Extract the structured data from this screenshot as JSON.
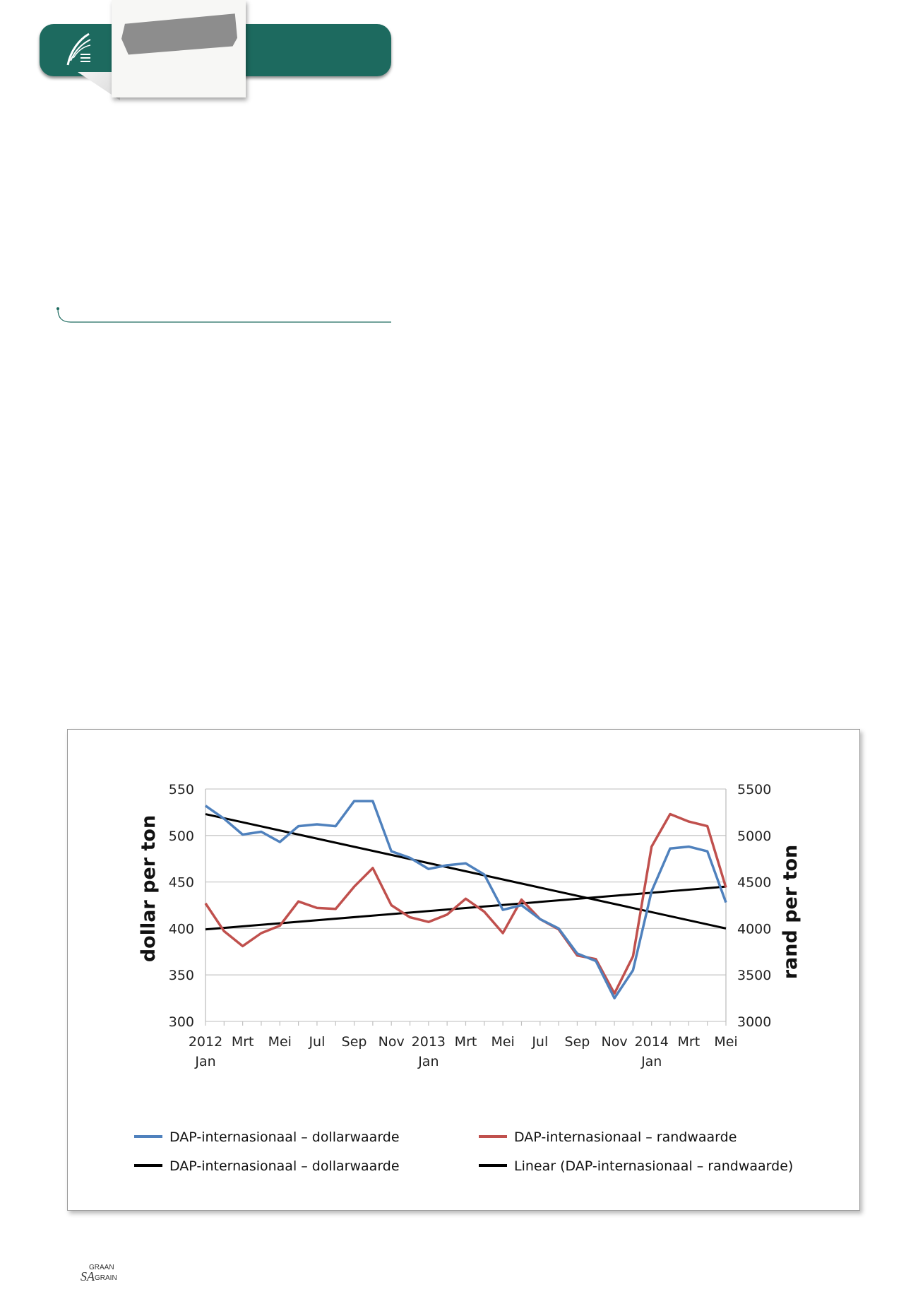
{
  "colors": {
    "header": "#1d6a5f",
    "blue": "#4f81bd",
    "red": "#c0504d",
    "black": "#000000",
    "grid": "#c9c9c9"
  },
  "chart_data": {
    "type": "line",
    "x_labels": [
      {
        "top": "2012",
        "bottom": "Jan"
      },
      {
        "top": "Mrt",
        "bottom": ""
      },
      {
        "top": "Mei",
        "bottom": ""
      },
      {
        "top": "Jul",
        "bottom": ""
      },
      {
        "top": "Sep",
        "bottom": ""
      },
      {
        "top": "Nov",
        "bottom": ""
      },
      {
        "top": "2013",
        "bottom": "Jan"
      },
      {
        "top": "Mrt",
        "bottom": ""
      },
      {
        "top": "Mei",
        "bottom": ""
      },
      {
        "top": "Jul",
        "bottom": ""
      },
      {
        "top": "Sep",
        "bottom": ""
      },
      {
        "top": "Nov",
        "bottom": ""
      },
      {
        "top": "2014",
        "bottom": "Jan"
      },
      {
        "top": "Mrt",
        "bottom": ""
      },
      {
        "top": "Mei",
        "bottom": ""
      }
    ],
    "x": [
      "2012-01",
      "2012-02",
      "2012-03",
      "2012-04",
      "2012-05",
      "2012-06",
      "2012-07",
      "2012-08",
      "2012-09",
      "2012-10",
      "2012-11",
      "2012-12",
      "2013-01",
      "2013-02",
      "2013-03",
      "2013-04",
      "2013-05",
      "2013-06",
      "2013-07",
      "2013-08",
      "2013-09",
      "2013-10",
      "2013-11",
      "2013-12",
      "2014-01",
      "2014-02",
      "2014-03",
      "2014-04",
      "2014-05"
    ],
    "ylabel": "dollar per ton",
    "ylabel_right": "rand per ton",
    "ylim": [
      300,
      550
    ],
    "ylim_right": [
      3000,
      5500
    ],
    "yticks": [
      300,
      350,
      400,
      450,
      500,
      550
    ],
    "yticks_right": [
      3000,
      3500,
      4000,
      4500,
      5000,
      5500
    ],
    "grid": true,
    "series": [
      {
        "name": "DAP-internasionaal – dollarwaarde",
        "axis": "left",
        "color": "#4f81bd",
        "values": [
          532,
          518,
          501,
          504,
          493,
          510,
          512,
          510,
          537,
          537,
          483,
          476,
          464,
          468,
          470,
          458,
          420,
          425,
          410,
          400,
          373,
          365,
          325,
          355,
          440,
          486,
          488,
          483,
          428
        ]
      },
      {
        "name": "DAP-internasionaal – randwaarde",
        "axis": "right",
        "color": "#c0504d",
        "values": [
          4270,
          3970,
          3810,
          3950,
          4030,
          4290,
          4220,
          4210,
          4450,
          4650,
          4250,
          4120,
          4070,
          4150,
          4320,
          4180,
          3950,
          4310,
          4100,
          3990,
          3710,
          3670,
          3300,
          3700,
          4880,
          5230,
          5150,
          5100,
          4440
        ]
      }
    ],
    "trendlines": [
      {
        "name": "DAP-internasionaal – dollarwaarde",
        "axis": "left",
        "color": "#000000",
        "from": 523,
        "to": 400
      },
      {
        "name": "Linear (DAP-internasionaal – randwaarde)",
        "axis": "right",
        "color": "#000000",
        "from": 3990,
        "to": 4450
      }
    ],
    "legend": [
      {
        "label": "DAP-internasionaal – dollarwaarde",
        "color": "#4f81bd"
      },
      {
        "label": "DAP-internasionaal – randwaarde",
        "color": "#c0504d"
      },
      {
        "label": "DAP-internasionaal – dollarwaarde",
        "color": "#000000"
      },
      {
        "label": "Linear (DAP-internasionaal – randwaarde)",
        "color": "#000000"
      }
    ],
    "legend_position": "bottom"
  },
  "footer": {
    "logo_top": "GRAAN",
    "logo_bottom": "SA GRAIN"
  }
}
